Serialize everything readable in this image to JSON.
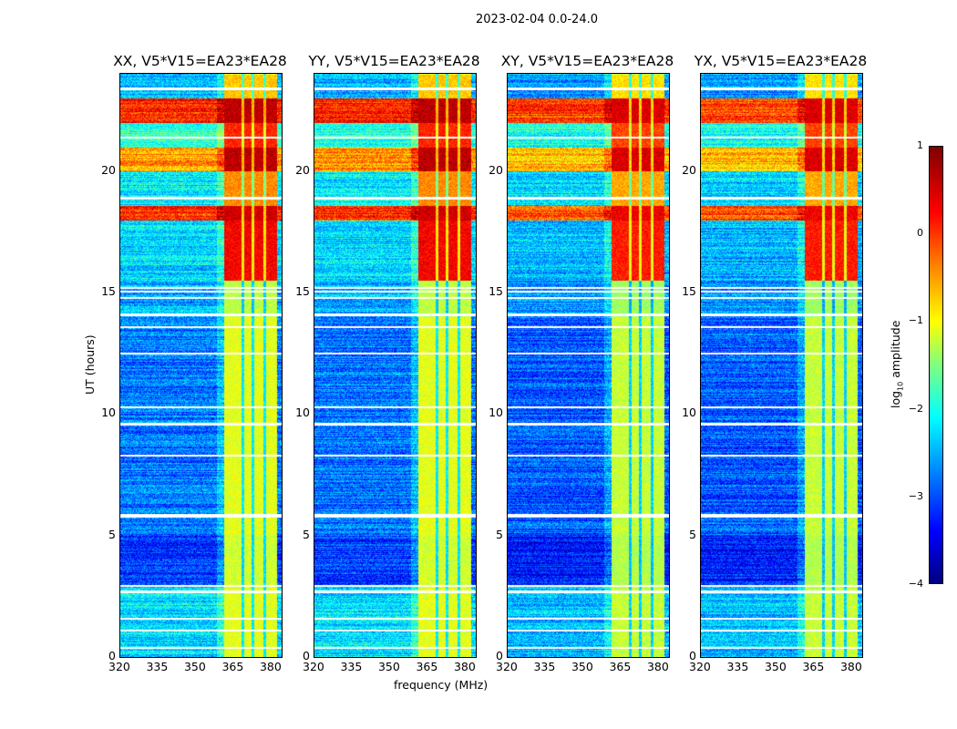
{
  "suptitle": "2023-02-04 0.0-24.0",
  "chart_data": {
    "type": "heatmap",
    "panels": [
      {
        "title": "XX, V5*V15=EA23*EA28"
      },
      {
        "title": "YY, V5*V15=EA23*EA28"
      },
      {
        "title": "XY, V5*V15=EA23*EA28"
      },
      {
        "title": "YX, V5*V15=EA23*EA28"
      }
    ],
    "xlabel": "frequency (MHz)",
    "ylabel": "UT (hours)",
    "xlim": [
      320,
      384
    ],
    "ylim": [
      0,
      24
    ],
    "xticks": [
      "320",
      "335",
      "350",
      "365",
      "380"
    ],
    "yticks": [
      "0",
      "5",
      "10",
      "15",
      "20"
    ],
    "xtick_values": [
      320,
      335,
      350,
      365,
      380
    ],
    "ytick_values": [
      0,
      5,
      10,
      15,
      20
    ],
    "colorbar": {
      "label": "log10 amplitude",
      "label_main": "log",
      "label_sub": "10",
      "label_rest": " amplitude",
      "ticks": [
        "1",
        "0",
        "−1",
        "−2",
        "−3",
        "−4"
      ],
      "tick_values": [
        1,
        0,
        -1,
        -2,
        -3,
        -4
      ],
      "range": [
        -4,
        1
      ],
      "colormap": "jet"
    },
    "rfi_band_mhz": [
      361,
      382
    ],
    "band_notches_mhz": [
      368.5,
      372.5,
      377
    ],
    "time_profile": [
      {
        "from": 0,
        "to": 3,
        "background": -2.3,
        "band": -1.0
      },
      {
        "from": 3,
        "to": 5,
        "background": -3.1,
        "band": -1.1
      },
      {
        "from": 5,
        "to": 14,
        "background": -2.8,
        "band": -1.0
      },
      {
        "from": 14,
        "to": 15.5,
        "background": -2.5,
        "band": -1.2
      },
      {
        "from": 15.5,
        "to": 18,
        "background": -2.3,
        "band": 0.4
      },
      {
        "from": 18,
        "to": 18.6,
        "background": 0.1,
        "band": 0.6
      },
      {
        "from": 18.6,
        "to": 20,
        "background": -2.2,
        "band": -0.3
      },
      {
        "from": 20,
        "to": 21,
        "background": -0.4,
        "band": 0.7
      },
      {
        "from": 21,
        "to": 22,
        "background": -1.9,
        "band": 0.2
      },
      {
        "from": 22,
        "to": 23,
        "background": 0.2,
        "band": 0.7
      },
      {
        "from": 23,
        "to": 24,
        "background": -2.5,
        "band": -0.6
      }
    ],
    "flagged_hours": [
      0.4,
      1.1,
      1.6,
      2.7,
      2.95,
      5.8,
      5.85,
      8.3,
      9.6,
      10.3,
      12.5,
      13.6,
      14.1,
      14.8,
      15.05,
      15.2,
      18.9,
      21.4,
      23.4
    ]
  }
}
